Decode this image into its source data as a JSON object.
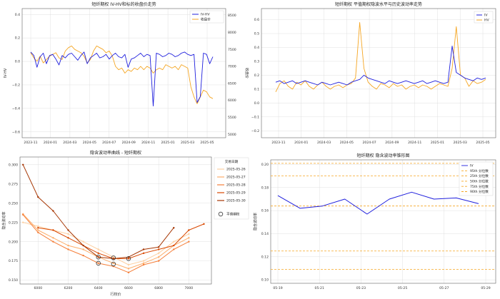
{
  "chart_data": [
    {
      "type": "line",
      "title": "短纤期权 IV-HV和标的收盘价走势",
      "ylabel": "IV-HV",
      "y2label": "收盘价",
      "x_ticks": [
        "2023-11",
        "2024-01",
        "2024-03",
        "2024-05",
        "2024-07",
        "2024-09",
        "2024-11",
        "2025-01",
        "2025-03",
        "2025-05"
      ],
      "y_ticks": [
        "−0.6",
        "−0.4",
        "−0.2",
        "0.0",
        "0.2",
        "0.4"
      ],
      "y2_ticks": [
        "5000",
        "5500",
        "6000",
        "6500",
        "7000",
        "7500",
        "8000",
        "8500"
      ],
      "ylim": [
        -0.65,
        0.45
      ],
      "y2lim": [
        4900,
        8700
      ],
      "legend": [
        "IV-HV",
        "收盘价"
      ],
      "colors": {
        "iv_hv": "#1f1fdd",
        "close": "#f5a623",
        "y2_axis": "#e8302b",
        "y_axis": "#1e73be"
      },
      "series": [
        {
          "name": "IV-HV",
          "values": [
            0.08,
            0.05,
            -0.05,
            0.04,
            0.07,
            -0.02,
            0.05,
            0.06,
            0.02,
            -0.03,
            0.05,
            0.03,
            0.06,
            0.07,
            0.04,
            0.01,
            0.05,
            0.08,
            -0.02,
            0.03,
            0.05,
            0.07,
            0.03,
            0.04,
            0.06,
            0.02,
            0.05,
            0.07,
            0.04,
            0.03,
            0.06,
            -0.05,
            0.02,
            0.03,
            0.05,
            0.07,
            0.04,
            0.06,
            0.05,
            -0.38,
            0.07,
            0.06,
            0.04,
            0.05,
            0.07,
            0.06,
            0.04,
            0.05,
            0.07,
            0.08,
            0.06,
            0.05,
            0.06,
            -0.35,
            -0.3,
            0.07,
            0.06,
            -0.02,
            0.04
          ]
        },
        {
          "name": "收盘价",
          "values": [
            7400,
            7250,
            7150,
            7300,
            7100,
            7200,
            7300,
            7350,
            7400,
            7250,
            7200,
            7450,
            7550,
            7600,
            7500,
            7450,
            7400,
            7300,
            7100,
            7200,
            7450,
            7600,
            7550,
            7500,
            7400,
            7450,
            7300,
            7000,
            6900,
            6950,
            6800,
            6900,
            6850,
            6950,
            6900,
            7000,
            6900,
            7000,
            6950,
            6800,
            6900,
            6950,
            6900,
            7050,
            7000,
            6950,
            7000,
            6900,
            7050,
            7000,
            6950,
            6400,
            6100,
            5900,
            6100,
            6300,
            6250,
            6100,
            6050
          ]
        }
      ]
    },
    {
      "type": "line",
      "title": "短纤期权 平值期权隐波水平与历史波动率走势",
      "x_ticks": [
        "2023-11",
        "2024-01",
        "2024-03",
        "2024-05",
        "2024-07",
        "2024-09",
        "2024-11",
        "2025-01",
        "2025-03",
        "2025-05"
      ],
      "y_ticks": [
        "−0.2",
        "−0.1",
        "0.0",
        "0.1",
        "0.2",
        "0.3",
        "0.4",
        "0.5",
        "0.6"
      ],
      "ylim": [
        -0.25,
        0.68
      ],
      "legend": [
        "IV",
        "HV"
      ],
      "colors": {
        "iv": "#1f1fdd",
        "hv": "#f5a623"
      },
      "series": [
        {
          "name": "IV",
          "values": [
            0.15,
            0.16,
            0.14,
            0.15,
            0.16,
            0.14,
            0.15,
            0.16,
            0.15,
            0.14,
            0.13,
            0.15,
            0.14,
            0.13,
            0.14,
            0.15,
            0.14,
            0.13,
            0.15,
            0.16,
            0.17,
            0.2,
            0.18,
            0.17,
            0.16,
            0.15,
            0.14,
            0.16,
            0.15,
            0.14,
            0.15,
            0.16,
            0.15,
            0.14,
            0.15,
            0.16,
            0.14,
            0.15,
            0.16,
            0.15,
            0.14,
            0.15,
            0.41,
            0.22,
            0.2,
            0.18,
            0.17,
            0.16,
            0.18,
            0.17,
            0.18
          ]
        },
        {
          "name": "HV",
          "values": [
            0.08,
            0.14,
            0.16,
            0.12,
            0.1,
            0.15,
            0.13,
            0.16,
            0.12,
            0.1,
            0.13,
            0.15,
            0.12,
            0.1,
            0.12,
            0.13,
            0.11,
            0.13,
            0.14,
            0.18,
            0.58,
            0.25,
            0.15,
            0.12,
            0.1,
            0.14,
            0.13,
            0.11,
            0.14,
            0.12,
            0.13,
            0.1,
            0.12,
            0.13,
            0.11,
            0.13,
            0.12,
            0.1,
            0.12,
            0.14,
            0.13,
            0.12,
            0.25,
            0.55,
            0.2,
            0.18,
            0.12,
            0.16,
            0.14,
            0.15,
            0.17
          ]
        }
      ]
    },
    {
      "type": "line",
      "title": "隐含波动率曲线 - 短纤期权",
      "xlabel": "行权价",
      "ylabel": "隐含波动率",
      "x_ticks": [
        "6000",
        "6200",
        "6400",
        "6600",
        "6800",
        "7000"
      ],
      "y_ticks": [
        "0.150",
        "0.175",
        "0.200",
        "0.225",
        "0.250",
        "0.275",
        "0.300"
      ],
      "xlim": [
        5880,
        7150
      ],
      "ylim": [
        0.145,
        0.31
      ],
      "legend_title": "交易日期",
      "legend": [
        "2025-05-26",
        "2025-05-27",
        "2025-05-28",
        "2025-05-29",
        "2025-05-30",
        "平值期权"
      ],
      "colors": [
        "#fdd0a2",
        "#fdae6b",
        "#f57f3a",
        "#d94801",
        "#a63603"
      ],
      "series": [
        {
          "name": "2025-05-26",
          "x": [
            5900,
            6000,
            6100,
            6200,
            6300,
            6400,
            6500,
            6600,
            6700,
            6800,
            6900,
            7000
          ],
          "values": [
            0.225,
            0.22,
            0.215,
            0.21,
            0.2,
            0.19,
            0.18,
            0.17,
            0.175,
            0.185,
            0.2,
            0.21
          ]
        },
        {
          "name": "2025-05-27",
          "x": [
            5900,
            6000,
            6100,
            6200,
            6300,
            6400,
            6500,
            6600,
            6700,
            6800,
            6900,
            7000
          ],
          "values": [
            0.236,
            0.215,
            0.205,
            0.195,
            0.19,
            0.18,
            0.172,
            0.165,
            0.172,
            0.18,
            0.195,
            0.205
          ]
        },
        {
          "name": "2025-05-28",
          "x": [
            5900,
            6000,
            6100,
            6200,
            6300,
            6400,
            6500,
            6600,
            6700,
            6800,
            6900,
            7000
          ],
          "values": [
            0.235,
            0.212,
            0.2,
            0.19,
            0.182,
            0.172,
            0.168,
            0.16,
            0.17,
            0.175,
            0.19,
            0.2
          ]
        },
        {
          "name": "2025-05-29",
          "x": [
            6000,
            6100,
            6200,
            6300,
            6400,
            6500,
            6600,
            6700,
            6800,
            6900,
            7000,
            7100
          ],
          "values": [
            0.218,
            0.215,
            0.205,
            0.195,
            0.185,
            0.178,
            0.178,
            0.185,
            0.19,
            0.195,
            0.215,
            0.223
          ]
        },
        {
          "name": "2025-05-30",
          "x": [
            5900,
            6000,
            6100,
            6200,
            6300,
            6400,
            6500,
            6600,
            6700,
            6800,
            6900
          ],
          "values": [
            0.3,
            0.258,
            0.24,
            0.215,
            0.195,
            0.18,
            0.178,
            0.18,
            0.19,
            0.193,
            0.218
          ]
        }
      ],
      "atm": [
        {
          "x": 6400,
          "y": 0.172
        },
        {
          "x": 6500,
          "y": 0.171
        },
        {
          "x": 6600,
          "y": 0.178
        },
        {
          "x": 6400,
          "y": 0.18
        },
        {
          "x": 6500,
          "y": 0.179
        }
      ]
    },
    {
      "type": "line",
      "title": "短纤期权 隐含波动率锥形图",
      "ylabel": "隐含波动率",
      "x_ticks": [
        "05-19",
        "05-21",
        "05-23",
        "05-25",
        "05-27",
        "05-29"
      ],
      "y_ticks": [
        "0.10",
        "0.12",
        "0.14",
        "0.16",
        "0.18",
        "0.20"
      ],
      "ylim": [
        0.097,
        0.204
      ],
      "legend": [
        "IV",
        "95th 分位数",
        "25th 分位数",
        "50th 分位数",
        "75th 分位数",
        "90th 分位数"
      ],
      "colors": {
        "iv": "#1f1fdd",
        "quantile": "#f5a623"
      },
      "series": [
        {
          "name": "IV",
          "x": [
            0,
            1,
            2,
            3,
            4,
            5,
            6,
            7,
            8,
            9
          ],
          "values": [
            0.173,
            0.162,
            0.164,
            0.17,
            0.157,
            0.17,
            0.176,
            0.17,
            0.171,
            0.166
          ]
        }
      ],
      "quantiles": [
        0.201,
        0.109,
        0.125,
        0.164,
        0.19
      ]
    }
  ]
}
